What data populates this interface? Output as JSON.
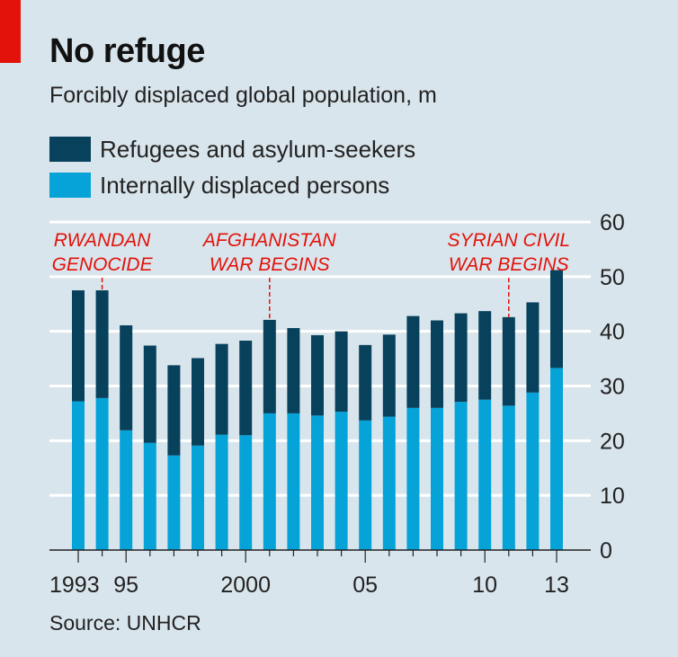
{
  "header": {
    "title": "No refuge",
    "subtitle": "Forcibly displaced global population, m"
  },
  "legend": {
    "items": [
      {
        "label": "Refugees and asylum-seekers",
        "color": "#08415c"
      },
      {
        "label": "Internally displaced persons",
        "color": "#06a3d9"
      }
    ]
  },
  "source": "Source: UNHCR",
  "colors": {
    "background": "#d9e5ec",
    "refugees": "#08415c",
    "idp": "#06a3d9",
    "annotation": "#e3120b",
    "grid": "#ffffff"
  },
  "chart_data": {
    "type": "bar",
    "stacked": true,
    "x": [
      1993,
      1994,
      1995,
      1996,
      1997,
      1998,
      1999,
      2000,
      2001,
      2002,
      2003,
      2004,
      2005,
      2006,
      2007,
      2008,
      2009,
      2010,
      2011,
      2012,
      2013
    ],
    "series": [
      {
        "name": "Internally displaced persons",
        "values": [
          27.2,
          27.8,
          21.9,
          19.6,
          17.3,
          19.1,
          21.1,
          21.0,
          25.0,
          25.0,
          24.6,
          25.3,
          23.7,
          24.4,
          26.0,
          26.0,
          27.1,
          27.5,
          26.4,
          28.8,
          33.3
        ]
      },
      {
        "name": "Refugees and asylum-seekers",
        "values": [
          20.3,
          19.7,
          19.2,
          17.8,
          16.5,
          16.0,
          16.6,
          17.3,
          17.1,
          15.6,
          14.7,
          14.7,
          13.8,
          15.0,
          16.8,
          16.0,
          16.2,
          16.2,
          16.2,
          16.5,
          17.9
        ]
      }
    ],
    "ylim": [
      0,
      60
    ],
    "yticks": [
      0,
      10,
      20,
      30,
      40,
      50,
      60
    ],
    "y_axis_position": "right",
    "grid": true,
    "xtick_labels": [
      {
        "x": 1993,
        "label": "1993"
      },
      {
        "x": 1995,
        "label": "95"
      },
      {
        "x": 2000,
        "label": "2000"
      },
      {
        "x": 2005,
        "label": "05"
      },
      {
        "x": 2010,
        "label": "10"
      },
      {
        "x": 2013,
        "label": "13"
      }
    ],
    "annotations": [
      {
        "x": 1994,
        "lines": [
          "RWANDAN",
          "GENOCIDE"
        ]
      },
      {
        "x": 2001,
        "lines": [
          "AFGHANISTAN",
          "WAR BEGINS"
        ]
      },
      {
        "x": 2011,
        "lines": [
          "SYRIAN CIVIL",
          "WAR BEGINS"
        ]
      }
    ]
  }
}
